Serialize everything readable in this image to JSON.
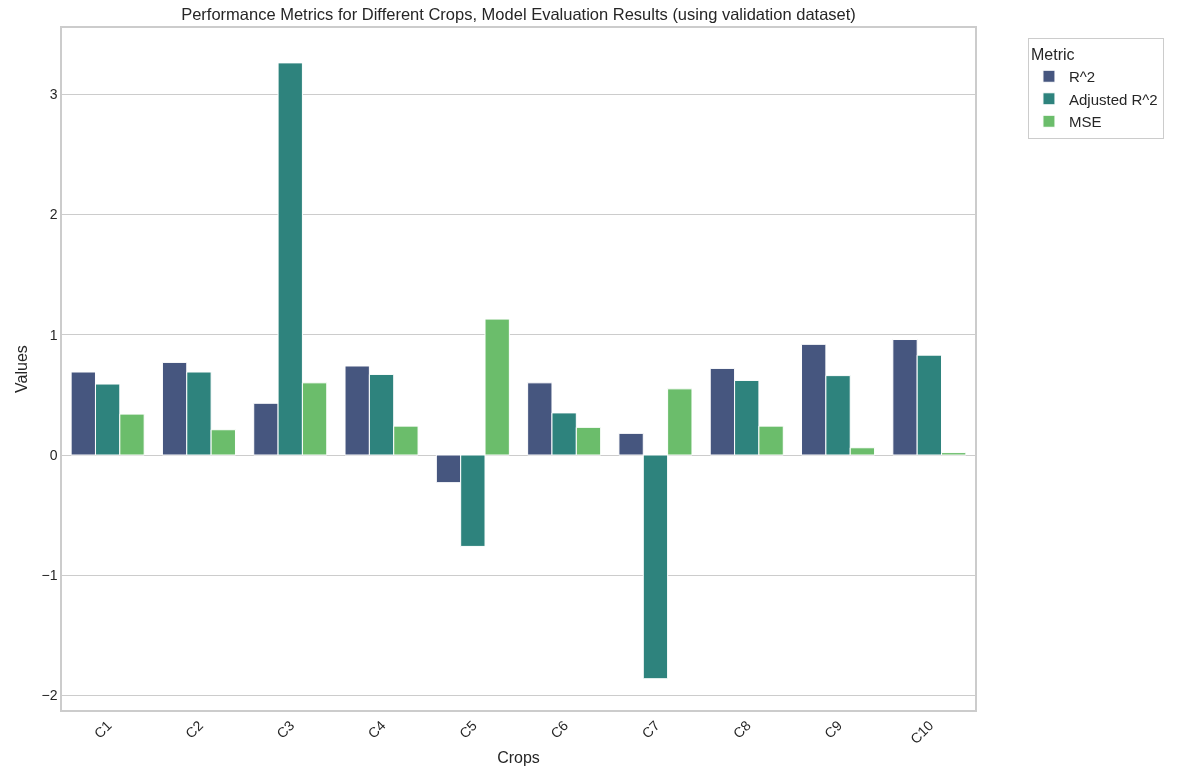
{
  "chart_data": {
    "type": "bar",
    "title": "Performance Metrics for Different Crops, Model Evaluation Results (using validation dataset)",
    "xlabel": "Crops",
    "ylabel": "Values",
    "legend_title": "Metric",
    "categories": [
      "C1",
      "C2",
      "C3",
      "C4",
      "C5",
      "C6",
      "C7",
      "C8",
      "C9",
      "C10"
    ],
    "series": [
      {
        "name": "R^2",
        "color": "#46567f",
        "values": [
          0.69,
          0.77,
          0.43,
          0.74,
          -0.23,
          0.6,
          0.18,
          0.72,
          0.92,
          0.96
        ]
      },
      {
        "name": "Adjusted R^2",
        "color": "#2e837d",
        "values": [
          0.59,
          0.69,
          3.26,
          0.67,
          -0.76,
          0.35,
          -1.86,
          0.62,
          0.66,
          0.83
        ]
      },
      {
        "name": "MSE",
        "color": "#6bbd6b",
        "values": [
          0.34,
          0.21,
          0.6,
          0.24,
          1.13,
          0.23,
          0.55,
          0.24,
          0.06,
          0.02
        ]
      }
    ],
    "ylim": [
      -2.12,
      3.55
    ],
    "yticks": [
      {
        "value": -2,
        "label": "−2"
      },
      {
        "value": -1,
        "label": "−1"
      },
      0,
      1,
      2,
      3
    ],
    "grid": "y",
    "legend": "top right"
  }
}
